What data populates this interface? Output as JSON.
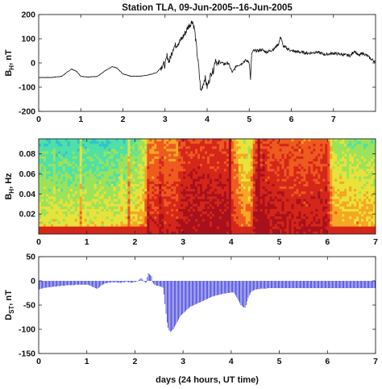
{
  "chart_data": [
    {
      "type": "line",
      "title": "Station TLA, 09-Jun-2005--16-Jun-2005",
      "ylabel_main": "B",
      "ylabel_sub": "H",
      "ylabel_rest": ", nT",
      "xlim": [
        0,
        8
      ],
      "ylim": [
        -200,
        200
      ],
      "xticks": [
        0,
        1,
        2,
        3,
        4,
        5,
        6,
        7
      ],
      "xtick_labels": [
        "0",
        "1",
        "2",
        "3",
        "4",
        "5",
        "6",
        "7"
      ],
      "yticks": [
        -200,
        -100,
        0,
        100,
        200
      ],
      "ytick_labels": [
        "-200",
        "-100",
        "0",
        "100",
        "200"
      ],
      "line_color": "#111111",
      "series": [
        {
          "x": [
            0,
            0.3,
            0.55,
            0.7,
            0.78,
            0.9,
            1.0,
            1.2,
            1.4,
            1.6,
            1.75,
            1.85,
            2.0,
            2.2,
            2.4,
            2.6,
            2.8,
            2.9,
            2.95,
            3.0,
            3.05,
            3.1,
            3.2,
            3.3,
            3.4,
            3.5,
            3.55,
            3.6,
            3.65,
            3.7,
            3.75,
            3.8,
            3.85,
            3.9,
            3.95,
            4.0,
            4.05,
            4.1,
            4.15,
            4.2,
            4.25,
            4.3,
            4.4,
            4.5,
            4.6,
            4.7,
            4.8,
            4.9,
            5.0,
            5.03,
            5.06,
            5.1,
            5.2,
            5.3,
            5.4,
            5.5,
            5.6,
            5.7,
            5.75,
            5.8,
            5.9,
            6.0,
            6.2,
            6.4,
            6.6,
            6.8,
            7.0,
            7.2,
            7.4,
            7.5,
            7.6,
            7.7,
            7.8,
            7.9,
            8.0
          ],
          "y": [
            -60,
            -60,
            -55,
            -35,
            -25,
            -35,
            -55,
            -58,
            -55,
            -30,
            -15,
            -20,
            -45,
            -55,
            -55,
            -50,
            -40,
            -20,
            -5,
            -10,
            30,
            5,
            65,
            80,
            100,
            130,
            150,
            160,
            175,
            140,
            60,
            -20,
            -120,
            -90,
            -60,
            -100,
            -70,
            -40,
            -30,
            20,
            -10,
            5,
            -5,
            0,
            -40,
            -10,
            -5,
            10,
            5,
            -70,
            40,
            50,
            50,
            55,
            45,
            50,
            60,
            80,
            110,
            70,
            60,
            50,
            45,
            40,
            45,
            35,
            40,
            35,
            30,
            50,
            30,
            40,
            30,
            15,
            5
          ]
        }
      ]
    },
    {
      "type": "heatmap",
      "ylabel_main": "B",
      "ylabel_sub": "H",
      "ylabel_rest": ", Hz",
      "xlim": [
        0,
        7
      ],
      "ylim": [
        0,
        0.095
      ],
      "xticks": [
        0,
        1,
        2,
        3,
        4,
        5,
        6,
        7
      ],
      "xtick_labels": [
        "0",
        "1",
        "2",
        "3",
        "4",
        "5",
        "6",
        "7"
      ],
      "yticks": [
        0.02,
        0.04,
        0.06,
        0.08
      ],
      "ytick_labels": [
        "0.02",
        "0.04",
        "0.06",
        "0.08"
      ],
      "colormap": [
        "#2a6fd6",
        "#33c3c9",
        "#4fe0a8",
        "#9be35a",
        "#e8e23a",
        "#f6a623",
        "#ee5a1f",
        "#d5261a",
        "#a8111c"
      ],
      "intensity_by_day": {
        "x": [
          0,
          0.5,
          1.0,
          1.5,
          2.0,
          2.2,
          2.3,
          2.5,
          2.9,
          3.0,
          3.3,
          3.6,
          3.9,
          4.0,
          4.2,
          4.4,
          4.5,
          4.8,
          5.2,
          5.6,
          5.9,
          6.0,
          6.1,
          6.5,
          7.0
        ],
        "level": [
          0.3,
          0.28,
          0.3,
          0.3,
          0.35,
          0.5,
          0.8,
          0.78,
          0.8,
          0.95,
          0.95,
          0.95,
          0.95,
          0.85,
          0.6,
          0.55,
          0.95,
          0.9,
          0.88,
          0.85,
          0.9,
          0.95,
          0.5,
          0.45,
          0.42
        ]
      }
    },
    {
      "type": "bar",
      "ylabel_main": "D",
      "ylabel_sub": "ST",
      "ylabel_rest": ", nT",
      "xlabel": "days (24 hours, UT time)",
      "xlim": [
        0,
        7
      ],
      "ylim": [
        -150,
        50
      ],
      "xticks": [
        0,
        1,
        2,
        3,
        4,
        5,
        6,
        7
      ],
      "xtick_labels": [
        "0",
        "1",
        "2",
        "3",
        "4",
        "5",
        "6",
        "7"
      ],
      "yticks": [
        -150,
        -100,
        -50,
        0,
        50
      ],
      "ytick_labels": [
        "-150",
        "-100",
        "-50",
        "0",
        "50"
      ],
      "bar_color": "#1f1fd6",
      "hourly_values": [
        -18,
        -17,
        -16,
        -16,
        -15,
        -15,
        -14,
        -14,
        -14,
        -13,
        -13,
        -13,
        -13,
        -12,
        -12,
        -12,
        -12,
        -11,
        -11,
        -11,
        -11,
        -10,
        -10,
        -10,
        -10,
        -10,
        -9,
        -9,
        -9,
        -9,
        -9,
        -9,
        -9,
        -9,
        -9,
        -8,
        -8,
        -8,
        -8,
        -8,
        -8,
        -8,
        -8,
        -8,
        -8,
        -8,
        -8,
        -8,
        -9,
        -10,
        -11,
        -12,
        -13,
        -14,
        -15,
        -16,
        -16,
        -15,
        -13,
        -11,
        -9,
        -8,
        -7,
        -6,
        -5,
        -5,
        -4,
        -4,
        -4,
        -3,
        -3,
        -3,
        -3,
        -3,
        -3,
        -3,
        -4,
        -4,
        -4,
        -4,
        -3,
        -3,
        -3,
        -2,
        -2,
        -2,
        -3,
        -3,
        -4,
        -4,
        -3,
        -3,
        -2,
        -2,
        -1,
        -1,
        2,
        4,
        6,
        3,
        1,
        -2,
        -4,
        -3,
        8,
        16,
        14,
        12,
        10,
        -3,
        -6,
        -8,
        -9,
        -10,
        -10,
        -11,
        -11,
        -12,
        -13,
        -14,
        -28,
        -48,
        -68,
        -86,
        -97,
        -102,
        -105,
        -104,
        -102,
        -100,
        -96,
        -92,
        -88,
        -84,
        -80,
        -76,
        -72,
        -70,
        -68,
        -66,
        -64,
        -62,
        -60,
        -58,
        -56,
        -54,
        -53,
        -52,
        -51,
        -50,
        -49,
        -48,
        -47,
        -46,
        -45,
        -44,
        -43,
        -42,
        -41,
        -40,
        -39,
        -38,
        -37,
        -36,
        -35,
        -34,
        -33,
        -32,
        -32,
        -31,
        -30,
        -30,
        -29,
        -29,
        -28,
        -28,
        -27,
        -27,
        -26,
        -26,
        -26,
        -25,
        -25,
        -25,
        -24,
        -24,
        -24,
        -24,
        -27,
        -30,
        -34,
        -38,
        -42,
        -46,
        -50,
        -52,
        -54,
        -55,
        -55,
        -50,
        -42,
        -35,
        -30,
        -26,
        -23,
        -21,
        -20,
        -19,
        -18,
        -18,
        -17,
        -17,
        -17,
        -16,
        -16,
        -16,
        -16,
        -16,
        -16,
        -16,
        -15,
        -15,
        -15,
        -15,
        -15,
        -15,
        -15,
        -15,
        -15,
        -15,
        -15,
        -15,
        -15,
        -15,
        -15,
        -15,
        -15,
        -15,
        -15,
        -15,
        -15,
        -15,
        -15,
        -15,
        -15,
        -15,
        -15,
        -15,
        -15,
        -15,
        -15,
        -15,
        -15,
        -15,
        -15,
        -15,
        -15,
        -15,
        -15,
        -15,
        -15,
        -15,
        -15,
        -15,
        -15,
        -15,
        -15,
        -15,
        -15,
        -15,
        -15,
        -15,
        -15,
        -15,
        -15,
        -15,
        -15,
        -15,
        -15,
        -15,
        -15,
        -15,
        -15,
        -15,
        -15,
        -15,
        -15,
        -15,
        -15,
        -15,
        -15,
        -15,
        -15,
        -15,
        -15,
        -15,
        -15,
        -15,
        -15,
        -15,
        -15,
        -15,
        -15,
        -15,
        -15,
        -15,
        -15,
        -15,
        -15,
        -15,
        -15,
        -15,
        -15,
        -15,
        -15,
        -15,
        -15,
        -15,
        -15,
        -15,
        -15,
        -15,
        -15,
        -15
      ]
    }
  ]
}
